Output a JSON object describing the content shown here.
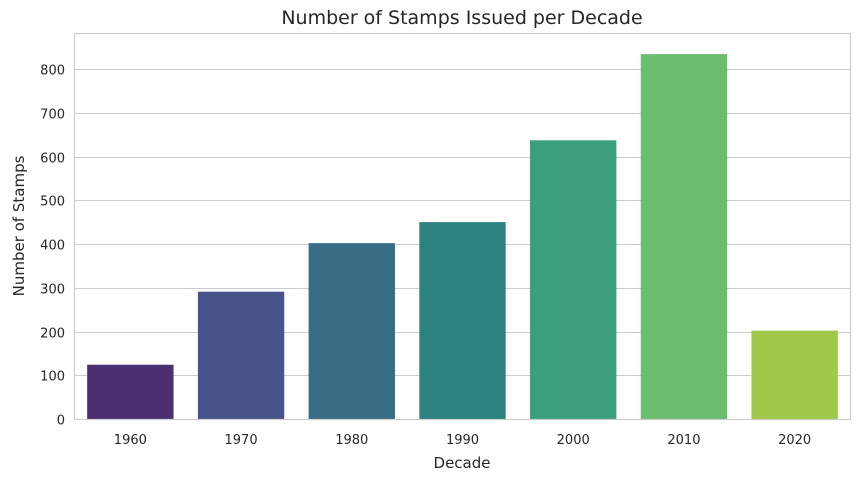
{
  "chart_data": {
    "type": "bar",
    "title": "Number of Stamps Issued per Decade",
    "xlabel": "Decade",
    "ylabel": "Number of Stamps",
    "categories": [
      "1960",
      "1970",
      "1980",
      "1990",
      "2000",
      "2010",
      "2020"
    ],
    "values": [
      124,
      291,
      402,
      450,
      637,
      834,
      202
    ],
    "colors": [
      "#4b2f71",
      "#46548a",
      "#386e85",
      "#2c8280",
      "#3a9f7a",
      "#6abd6e",
      "#a0c949"
    ],
    "ylim": [
      0,
      880
    ],
    "yticks": [
      0,
      100,
      200,
      300,
      400,
      500,
      600,
      700,
      800
    ],
    "grid": "horizontal",
    "legend": "none"
  }
}
